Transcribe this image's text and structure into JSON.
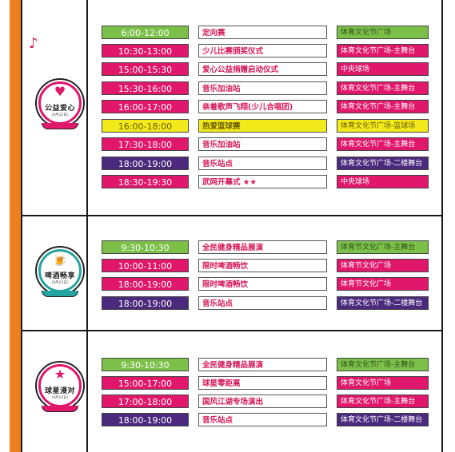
{
  "colors": {
    "pink": "#e0176b",
    "green": "#7cc04a",
    "purple": "#4b2a7e",
    "yellow": "#f3ea1c",
    "orange": "#ef7d22"
  },
  "sections": [
    {
      "badge": {
        "symbol": "♥",
        "title": "公益爱心",
        "date": "(9月22日)",
        "ring_color": "#e0176b",
        "icon": "heart-icon"
      },
      "rows": [
        {
          "time": "6:00-12:00",
          "activity": "定向赛",
          "location": "体育文化节广场",
          "time_color": "green",
          "loc_color": "green"
        },
        {
          "time": "10:30-13:00",
          "activity": "少儿比赛颁奖仪式",
          "location": "体育文化节广场-主舞台",
          "time_color": "pink",
          "loc_color": "pink"
        },
        {
          "time": "15:00-15:30",
          "activity": "爱心公益捐赠启动仪式",
          "location": "中央球场",
          "time_color": "pink",
          "loc_color": "pink"
        },
        {
          "time": "15:30-16:00",
          "activity": "音乐加油站",
          "location": "体育文化节广场-主舞台",
          "time_color": "pink",
          "loc_color": "pink"
        },
        {
          "time": "16:00-17:00",
          "activity": "亲着歌声飞翔(少儿合唱团)",
          "location": "体育文化节广场-主舞台",
          "time_color": "pink",
          "loc_color": "pink"
        },
        {
          "time": "16:00-18:00",
          "activity": "热爱篮球赛",
          "location": "体育文化节广场-篮球场",
          "time_color": "yellow",
          "loc_color": "yellow"
        },
        {
          "time": "17:30-18:00",
          "activity": "音乐加油站",
          "location": "体育文化节广场-主舞台",
          "time_color": "pink",
          "loc_color": "pink"
        },
        {
          "time": "18:00-19:00",
          "activity": "音乐站点",
          "location": "体育文化节广场-二楼舞台",
          "time_color": "purple",
          "loc_color": "purple"
        },
        {
          "time": "18:30-19:30",
          "activity": "武网开幕式 ★★",
          "location": "中央球场",
          "time_color": "pink",
          "loc_color": "pink"
        }
      ]
    },
    {
      "badge": {
        "symbol": "🍺",
        "title": "啤酒畅享",
        "date": "(9月23日)",
        "ring_color": "#22a3a0",
        "icon": "beer-icon"
      },
      "rows": [
        {
          "time": "9:30-10:30",
          "activity": "全民健身精品展演",
          "location": "体育节文化广场-主舞台",
          "time_color": "green",
          "loc_color": "green"
        },
        {
          "time": "10:00-11:00",
          "activity": "限时啤酒畅饮",
          "location": "体育节文化广场",
          "time_color": "pink",
          "loc_color": "pink"
        },
        {
          "time": "18:00-19:00",
          "activity": "限时啤酒畅饮",
          "location": "体育节文化广场",
          "time_color": "pink",
          "loc_color": "pink"
        },
        {
          "time": "18:00-19:00",
          "activity": "音乐站点",
          "location": "体育文化节广场-二楼舞台",
          "time_color": "purple",
          "loc_color": "purple"
        }
      ]
    },
    {
      "badge": {
        "symbol": "★",
        "title": "球星漫对",
        "date": "(9月24日)",
        "ring_color": "#e0176b",
        "icon": "star-icon"
      },
      "rows": [
        {
          "time": "9:30-10:30",
          "activity": "全民健身精品展演",
          "location": "体育文化节广场-主舞台",
          "time_color": "green",
          "loc_color": "green"
        },
        {
          "time": "15:00-17:00",
          "activity": "球星零距离",
          "location": "体育文化节广场",
          "time_color": "pink",
          "loc_color": "pink"
        },
        {
          "time": "17:00-18:00",
          "activity": "国风江湖专场演出",
          "location": "体育文化节广场-主舞台",
          "time_color": "pink",
          "loc_color": "pink"
        },
        {
          "time": "18:00-19:00",
          "activity": "音乐站点",
          "location": "体育文化节广场-二楼舞台",
          "time_color": "purple",
          "loc_color": "purple"
        }
      ]
    }
  ]
}
